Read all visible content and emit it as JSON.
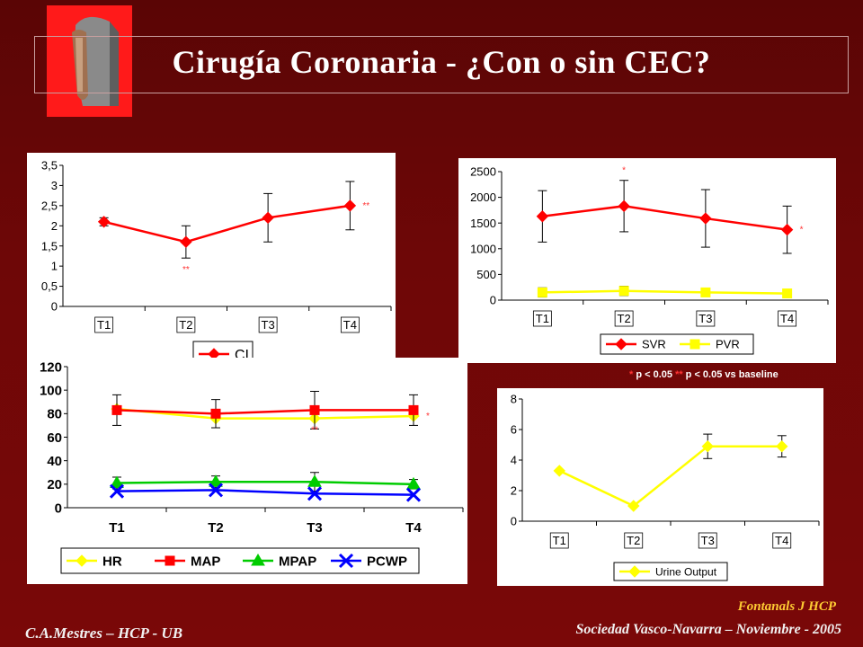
{
  "slide": {
    "title": "Cirugía Coronaria - ¿Con o sin CEC?",
    "footer_left": "C.A.Mestres – HCP - UB",
    "footer_right": "Sociedad Vasco-Navarra – Noviembre - 2005",
    "author": "Fontanals J   HCP",
    "note": {
      "star1": "*",
      "text1": " p < 0.05  ",
      "star2": "**",
      "text2": " p < 0.05 vs baseline"
    }
  },
  "colors": {
    "background": "#6e0707",
    "red": "#ff0000",
    "yellow": "#ffff00",
    "green": "#00cc00",
    "blue": "#0000ff",
    "title_text": "#ffffff",
    "author_text": "#ffcc33"
  },
  "chart_data": [
    {
      "id": "ci",
      "type": "line",
      "categories": [
        "T1",
        "T2",
        "T3",
        "T4"
      ],
      "yticks": [
        "0",
        "0,5",
        "1",
        "1,5",
        "2",
        "2,5",
        "3",
        "3,5"
      ],
      "ylim": [
        0,
        3.5
      ],
      "series": [
        {
          "name": "CI",
          "color": "#ff0000",
          "marker": "diamond",
          "values": [
            2.1,
            1.6,
            2.2,
            2.5
          ],
          "err": [
            0.1,
            0.4,
            0.6,
            0.6
          ]
        }
      ],
      "annotations": [
        {
          "index": 1,
          "text": "**",
          "pos": "below"
        },
        {
          "index": 3,
          "text": "**",
          "pos": "right"
        }
      ],
      "legend": "bottom"
    },
    {
      "id": "svr",
      "type": "line",
      "categories": [
        "T1",
        "T2",
        "T3",
        "T4"
      ],
      "yticks": [
        "0",
        "500",
        "1000",
        "1500",
        "2000",
        "2500"
      ],
      "ylim": [
        0,
        2500
      ],
      "series": [
        {
          "name": "SVR",
          "color": "#ff0000",
          "marker": "diamond",
          "values": [
            1630,
            1830,
            1590,
            1370
          ],
          "err": [
            500,
            500,
            560,
            460
          ]
        },
        {
          "name": "PVR",
          "color": "#ffff00",
          "marker": "square",
          "values": [
            150,
            180,
            150,
            130
          ],
          "err": [
            90,
            90,
            0,
            0
          ]
        }
      ],
      "annotations": [
        {
          "index": 1,
          "text": "*",
          "pos": "above"
        },
        {
          "index": 3,
          "text": "*",
          "pos": "right"
        }
      ],
      "legend": "bottom"
    },
    {
      "id": "hemo",
      "type": "line",
      "categories": [
        "T1",
        "T2",
        "T3",
        "T4"
      ],
      "yticks": [
        "0",
        "20",
        "40",
        "60",
        "80",
        "100",
        "120"
      ],
      "ylim": [
        0,
        120
      ],
      "series": [
        {
          "name": "HR",
          "color": "#ffff00",
          "marker": "diamond",
          "values": [
            84,
            76,
            76,
            78
          ],
          "err": [
            0,
            0,
            0,
            0
          ]
        },
        {
          "name": "MAP",
          "color": "#ff0000",
          "marker": "square",
          "values": [
            83,
            80,
            83,
            83
          ],
          "err": [
            13,
            12,
            16,
            13
          ]
        },
        {
          "name": "MPAP",
          "color": "#00cc00",
          "marker": "triangle",
          "values": [
            21,
            22,
            22,
            20
          ],
          "err": [
            5,
            5,
            8,
            4
          ]
        },
        {
          "name": "PCWP",
          "color": "#0000ff",
          "marker": "x",
          "values": [
            14,
            15,
            12,
            11
          ],
          "err": [
            0,
            0,
            0,
            0
          ]
        }
      ],
      "annotations": [
        {
          "index": 2,
          "text": "**",
          "pos": "below"
        },
        {
          "index": 3,
          "text": "*",
          "pos": "right"
        }
      ],
      "legend": "bottom"
    },
    {
      "id": "urine",
      "type": "line",
      "categories": [
        "T1",
        "T2",
        "T3",
        "T4"
      ],
      "yticks": [
        "0",
        "2",
        "4",
        "6",
        "8"
      ],
      "ylim": [
        0,
        8
      ],
      "series": [
        {
          "name": "Urine Output",
          "color": "#ffff00",
          "marker": "diamond",
          "values": [
            3.3,
            1.0,
            4.9,
            4.9
          ],
          "err": [
            0,
            0,
            0.8,
            0.7
          ]
        }
      ],
      "annotations": [],
      "legend": "bottom"
    }
  ]
}
